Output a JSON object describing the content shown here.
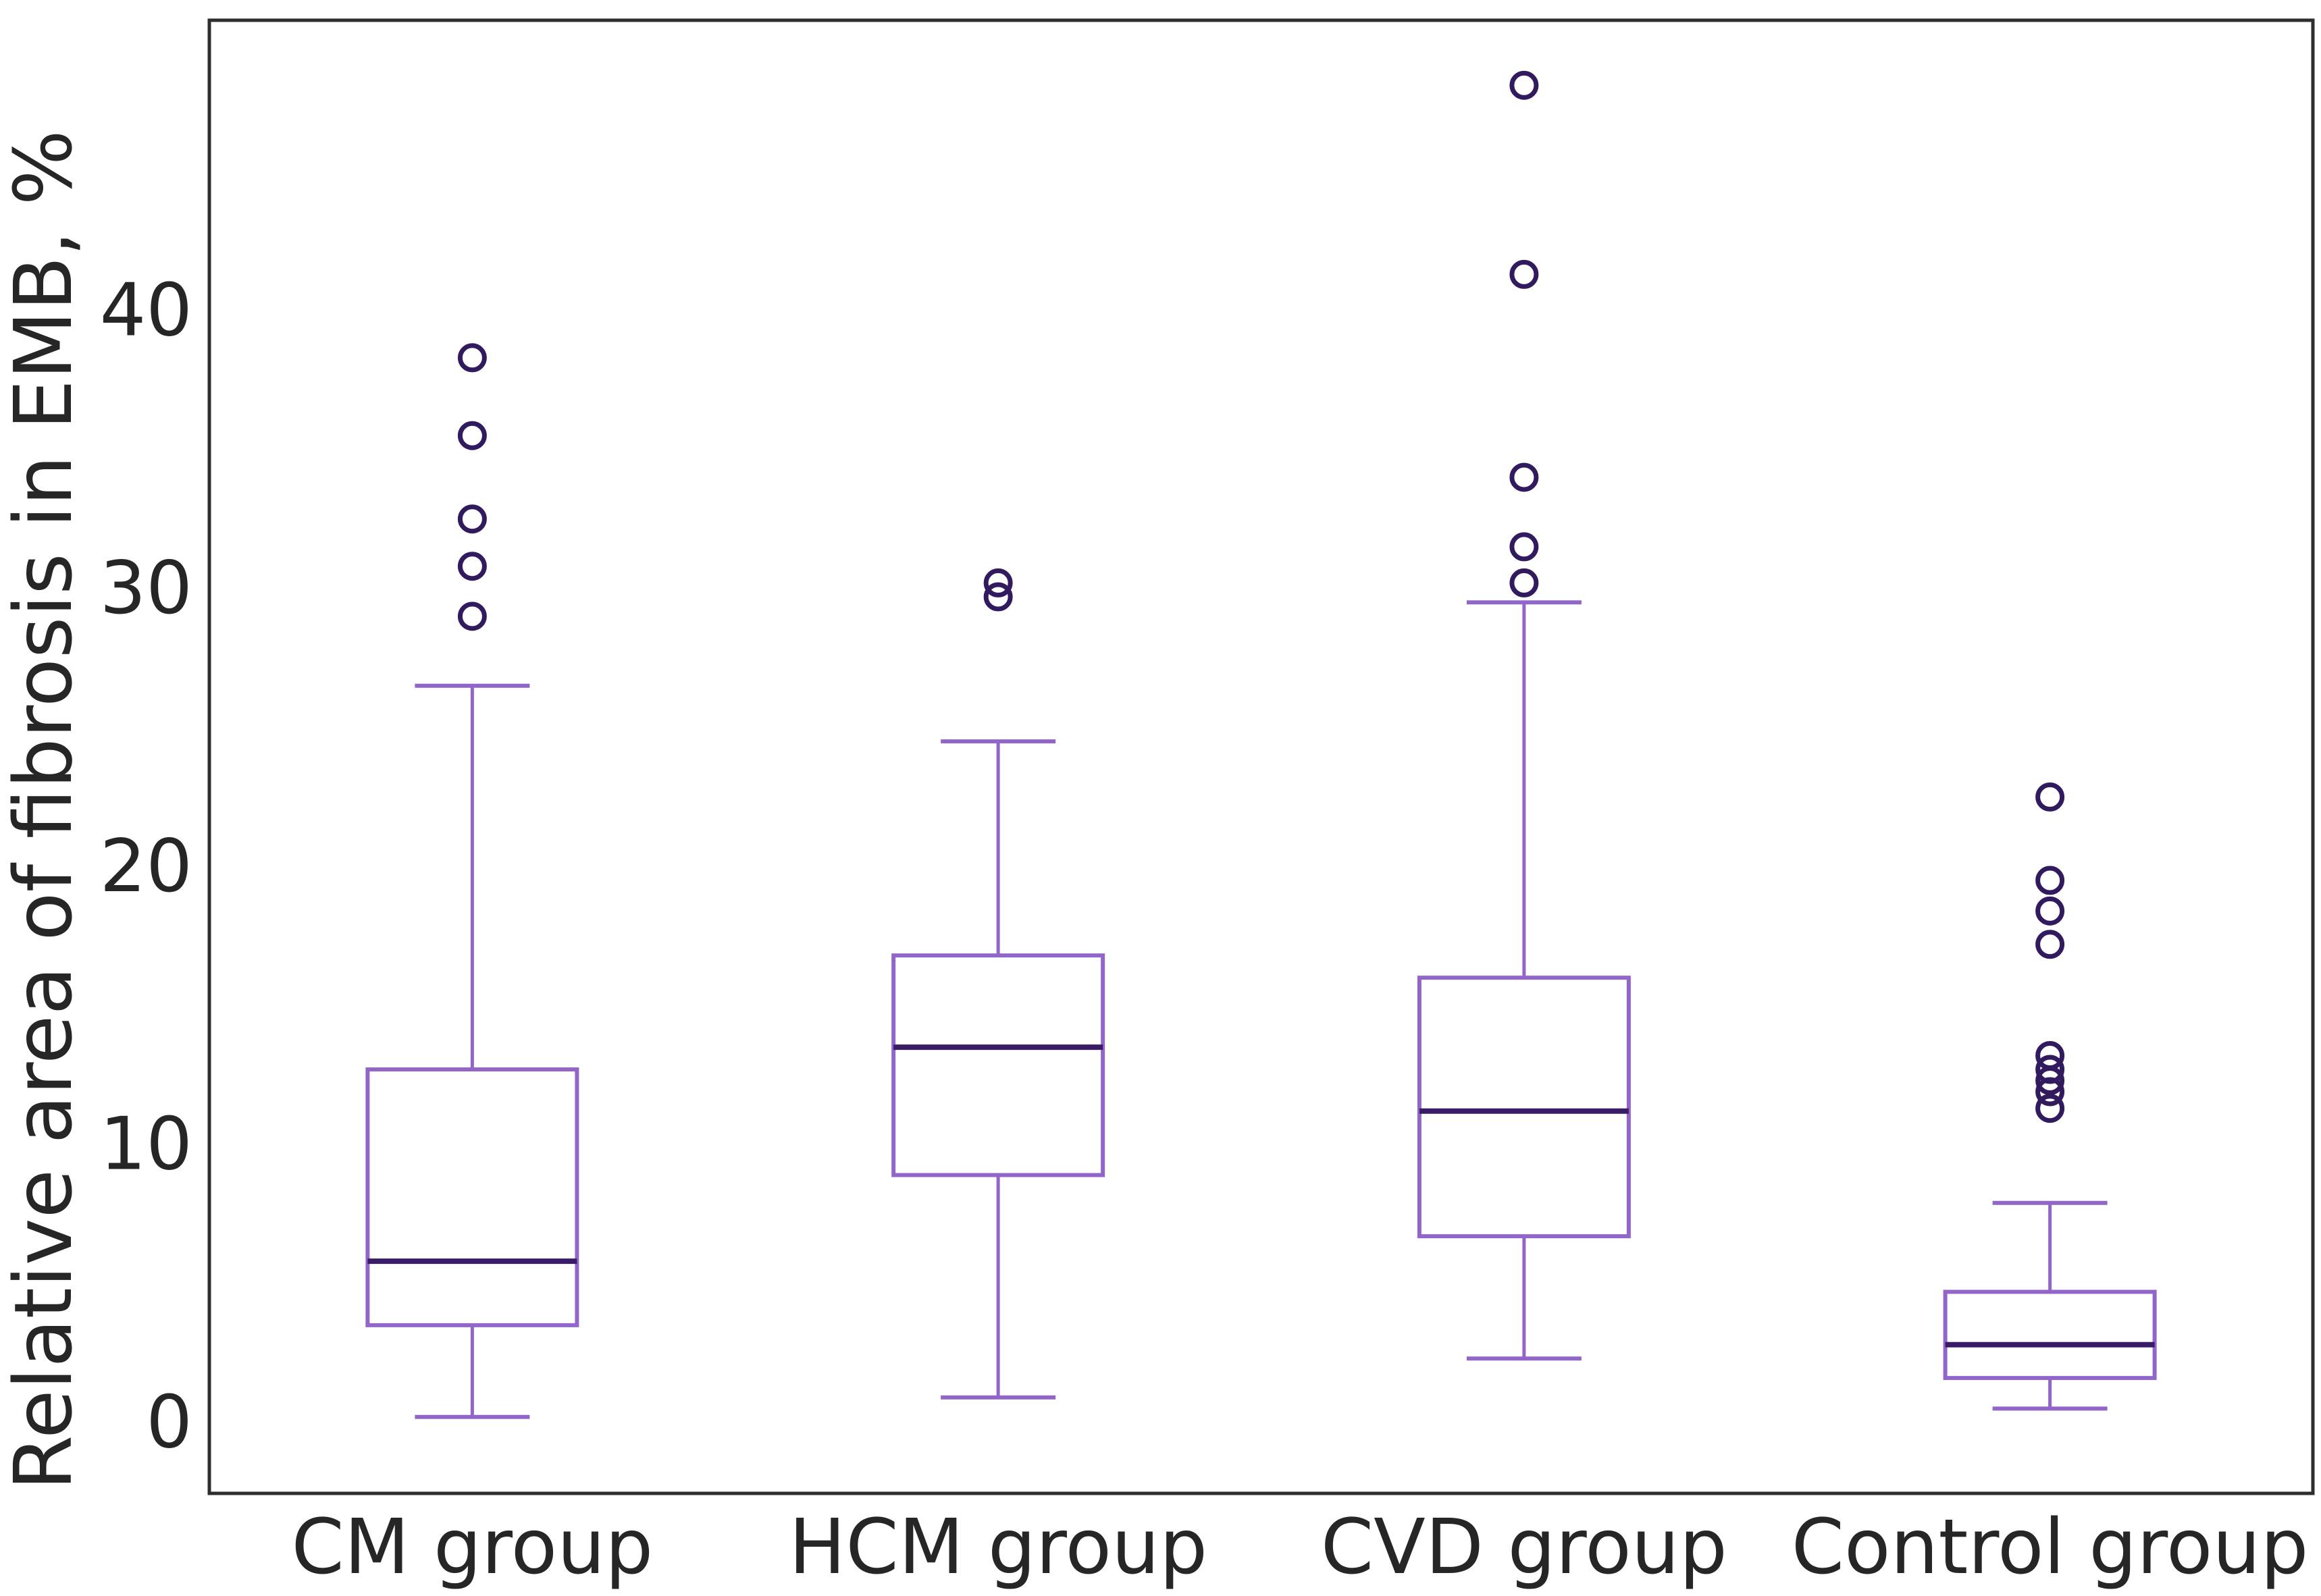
{
  "chart_data": {
    "type": "box",
    "title": "",
    "xlabel": "",
    "ylabel": "Relative area of fibrosis in EMB, %",
    "categories": [
      "CM group",
      "HCM group",
      "CVD group",
      "Control group"
    ],
    "yticks": [
      0,
      10,
      20,
      30,
      40
    ],
    "ylim": [
      -2.55,
      50.44
    ],
    "grid": false,
    "legend": null,
    "series": [
      {
        "name": "CM group",
        "whisker_low": 0.2,
        "q1": 3.5,
        "median": 5.8,
        "q3": 12.7,
        "whisker_high": 26.5,
        "outliers": [
          29.0,
          30.8,
          32.5,
          35.5,
          38.3
        ]
      },
      {
        "name": "HCM group",
        "whisker_low": 0.9,
        "q1": 8.9,
        "median": 13.5,
        "q3": 16.8,
        "whisker_high": 24.5,
        "outliers": [
          29.7,
          30.2
        ]
      },
      {
        "name": "CVD group",
        "whisker_low": 2.3,
        "q1": 6.7,
        "median": 11.2,
        "q3": 16.0,
        "whisker_high": 29.5,
        "outliers": [
          30.2,
          31.5,
          34.0,
          41.3,
          48.1
        ]
      },
      {
        "name": "Control group",
        "whisker_low": 0.5,
        "q1": 1.6,
        "median": 2.8,
        "q3": 4.7,
        "whisker_high": 7.9,
        "outliers": [
          11.3,
          11.9,
          12.3,
          12.7,
          13.2,
          17.2,
          18.4,
          19.5,
          22.5
        ]
      }
    ],
    "colors": {
      "box_edge": "#9266c9",
      "median": "#3a1b66",
      "outlier": "#311b5e",
      "spine": "#2e2e2e",
      "text": "#262626",
      "background": "#ffffff"
    }
  }
}
